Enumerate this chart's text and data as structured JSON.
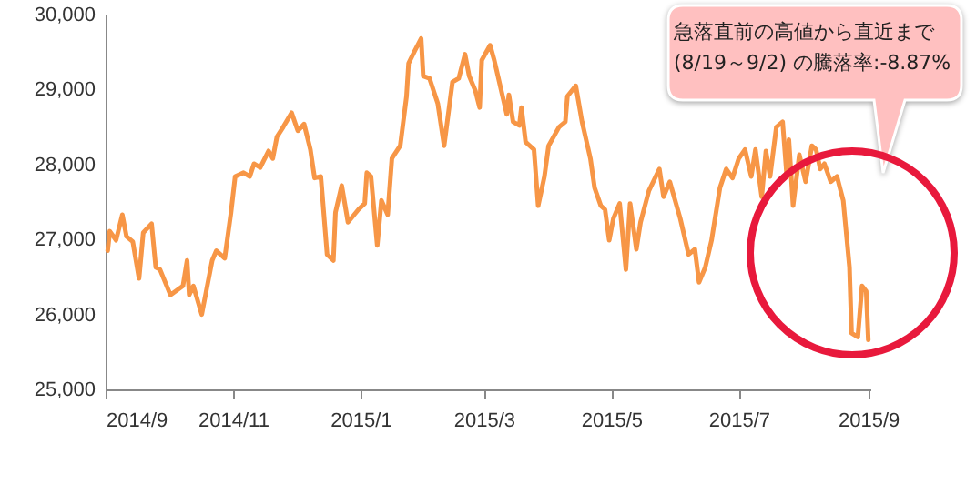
{
  "chart_data": {
    "type": "line",
    "x": [
      "2014-09-02",
      "2014-09-03",
      "2014-09-06",
      "2014-09-09",
      "2014-09-11",
      "2014-09-14",
      "2014-09-17",
      "2014-09-19",
      "2014-09-23",
      "2014-09-25",
      "2014-09-27",
      "2014-10-02",
      "2014-10-08",
      "2014-10-10",
      "2014-10-11",
      "2014-10-13",
      "2014-10-17",
      "2014-10-22",
      "2014-10-24",
      "2014-10-28",
      "2014-10-31",
      "2014-11-02",
      "2014-11-06",
      "2014-11-09",
      "2014-11-11",
      "2014-11-14",
      "2014-11-18",
      "2014-11-20",
      "2014-11-22",
      "2014-11-25",
      "2014-11-29",
      "2014-12-02",
      "2014-12-05",
      "2014-12-08",
      "2014-12-10",
      "2014-12-13",
      "2014-12-16",
      "2014-12-19",
      "2014-12-20",
      "2014-12-23",
      "2014-12-26",
      "2014-12-31",
      "2015-01-03",
      "2015-01-04",
      "2015-01-06",
      "2015-01-09",
      "2015-01-11",
      "2015-01-14",
      "2015-01-16",
      "2015-01-20",
      "2015-01-23",
      "2015-01-24",
      "2015-01-27",
      "2015-01-30",
      "2015-01-31",
      "2015-02-03",
      "2015-02-07",
      "2015-02-10",
      "2015-02-14",
      "2015-02-17",
      "2015-02-20",
      "2015-02-22",
      "2015-02-25",
      "2015-02-27",
      "2015-02-28",
      "2015-03-04",
      "2015-03-06",
      "2015-03-10",
      "2015-03-12",
      "2015-03-13",
      "2015-03-15",
      "2015-03-18",
      "2015-03-19",
      "2015-03-21",
      "2015-03-25",
      "2015-03-27",
      "2015-03-30",
      "2015-04-01",
      "2015-04-06",
      "2015-04-09",
      "2015-04-10",
      "2015-04-14",
      "2015-04-17",
      "2015-04-21",
      "2015-04-23",
      "2015-04-26",
      "2015-04-28",
      "2015-04-30",
      "2015-05-02",
      "2015-05-05",
      "2015-05-08",
      "2015-05-10",
      "2015-05-13",
      "2015-05-15",
      "2015-05-19",
      "2015-05-24",
      "2015-05-26",
      "2015-05-29",
      "2015-06-03",
      "2015-06-07",
      "2015-06-10",
      "2015-06-12",
      "2015-06-15",
      "2015-06-18",
      "2015-06-22",
      "2015-06-25",
      "2015-06-28",
      "2015-07-01",
      "2015-07-04",
      "2015-07-07",
      "2015-07-09",
      "2015-07-12",
      "2015-07-14",
      "2015-07-16",
      "2015-07-19",
      "2015-07-22",
      "2015-07-24",
      "2015-07-25",
      "2015-07-27",
      "2015-07-30",
      "2015-08-02",
      "2015-08-05",
      "2015-08-07",
      "2015-08-09",
      "2015-08-11",
      "2015-08-14",
      "2015-08-17",
      "2015-08-20",
      "2015-08-23",
      "2015-08-24",
      "2015-08-27",
      "2015-08-29",
      "2015-08-31",
      "2015-09-01"
    ],
    "series": [
      {
        "color": "#f79646",
        "values": [
          26850,
          27110,
          26990,
          27330,
          27040,
          26970,
          26480,
          27090,
          27210,
          26630,
          26600,
          26260,
          26380,
          26720,
          26260,
          26380,
          26000,
          26720,
          26850,
          26750,
          27360,
          27840,
          27890,
          27840,
          28010,
          27960,
          28180,
          28080,
          28370,
          28500,
          28690,
          28450,
          28540,
          28200,
          27820,
          27840,
          26800,
          26720,
          27360,
          27720,
          27230,
          27400,
          27480,
          27890,
          27840,
          26920,
          27520,
          27330,
          28080,
          28250,
          28910,
          29350,
          29520,
          29680,
          29180,
          29150,
          28810,
          28250,
          29100,
          29150,
          29470,
          29180,
          28980,
          28760,
          29390,
          29590,
          29390,
          28910,
          28670,
          28930,
          28570,
          28520,
          28760,
          28300,
          28200,
          27450,
          27840,
          28250,
          28500,
          28570,
          28910,
          29050,
          28570,
          28080,
          27690,
          27450,
          27400,
          26990,
          27280,
          27480,
          26600,
          27480,
          26870,
          27230,
          27650,
          27940,
          27570,
          27770,
          27280,
          26800,
          26870,
          26430,
          26630,
          26990,
          27690,
          27940,
          27820,
          28080,
          28200,
          27840,
          28200,
          27570,
          28180,
          27840,
          28500,
          28570,
          27840,
          28330,
          27450,
          28130,
          27770,
          28250,
          28200,
          27940,
          28010,
          27770,
          27840,
          27520,
          26630,
          25750,
          25700,
          26380,
          26310,
          25660
        ]
      }
    ],
    "xlim": [
      "2014-09-01",
      "2015-09-02"
    ],
    "xticks": [
      {
        "value": "2014-09-01",
        "label": "2014/9"
      },
      {
        "value": "2014-11-01",
        "label": "2014/11"
      },
      {
        "value": "2015-01-01",
        "label": "2015/1"
      },
      {
        "value": "2015-03-01",
        "label": "2015/3"
      },
      {
        "value": "2015-05-01",
        "label": "2015/5"
      },
      {
        "value": "2015-07-01",
        "label": "2015/7"
      },
      {
        "value": "2015-09-01",
        "label": "2015/9"
      }
    ],
    "ylim": [
      25000,
      30000
    ],
    "yticks": [
      {
        "value": 25000,
        "label": "25,000"
      },
      {
        "value": 26000,
        "label": "26,000"
      },
      {
        "value": 27000,
        "label": "27,000"
      },
      {
        "value": 28000,
        "label": "28,000"
      },
      {
        "value": 29000,
        "label": "29,000"
      },
      {
        "value": 30000,
        "label": "30,000"
      }
    ],
    "annotations": [
      "急落直前の高値から直近まで\n(8/19～9/2) の騰落率:-8.87%"
    ],
    "grid": false,
    "line_style": "solid",
    "marker": "none"
  }
}
